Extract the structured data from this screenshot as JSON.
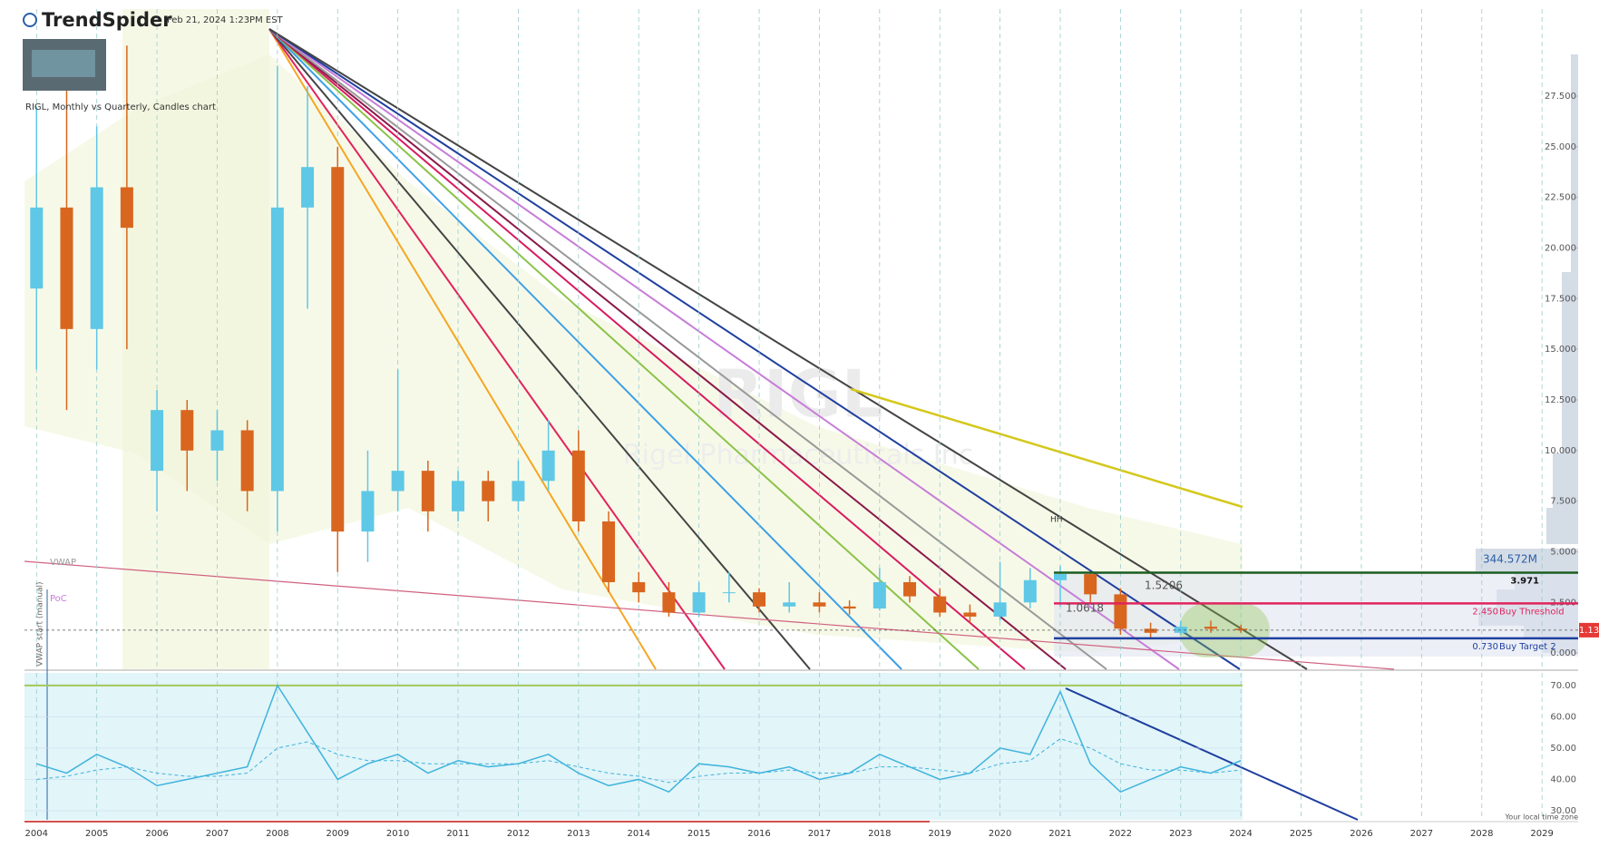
{
  "header": {
    "brand": "TrendSpider",
    "timestamp": "Feb 21, 2024 1:23PM EST",
    "chart_title": "RIGL, Monthly vs Quarterly, Candles chart"
  },
  "chart_data": [
    {
      "type": "candlestick",
      "watermark": "RIGL",
      "watermark_subtitle": "Rigel Pharmaceuticals Inc",
      "x": [
        2004.0,
        2004.5,
        2005.0,
        2005.5,
        2006.0,
        2006.5,
        2007.0,
        2007.5,
        2008.0,
        2008.5,
        2009.0,
        2009.5,
        2010.0,
        2010.5,
        2011.0,
        2011.5,
        2012.0,
        2012.5,
        2013.0,
        2013.5,
        2014.0,
        2014.5,
        2015.0,
        2015.5,
        2016.0,
        2016.5,
        2017.0,
        2017.5,
        2018.0,
        2018.5,
        2019.0,
        2019.5,
        2020.0,
        2020.5,
        2021.0,
        2021.5,
        2022.0,
        2022.5,
        2023.0,
        2023.5,
        2024.0
      ],
      "open": [
        18,
        22,
        16,
        23,
        9,
        12,
        10,
        11,
        8,
        22,
        24,
        6,
        8,
        9,
        7,
        8.5,
        7.5,
        8.5,
        10,
        6.5,
        3.5,
        3.0,
        2.0,
        3.0,
        3.0,
        2.3,
        2.5,
        2.3,
        2.2,
        3.5,
        2.8,
        2.0,
        1.8,
        2.5,
        3.6,
        3.9,
        2.9,
        1.2,
        1.0,
        1.3,
        1.2
      ],
      "high": [
        27,
        28,
        26,
        30,
        13,
        12.5,
        12,
        11.5,
        29,
        28,
        25,
        10,
        14,
        9.5,
        9,
        9,
        9.5,
        11.5,
        11,
        7,
        4,
        3.5,
        3.5,
        4.0,
        3.2,
        3.5,
        3.0,
        2.6,
        4.2,
        3.8,
        3.2,
        2.4,
        4.5,
        4.2,
        4.3,
        4.0,
        3.2,
        1.5,
        1.6,
        1.6,
        1.4
      ],
      "low": [
        14,
        12,
        14,
        15,
        7,
        8,
        8.5,
        7,
        6,
        17,
        4,
        4.5,
        7,
        6,
        6.5,
        6.5,
        7,
        8,
        6,
        3,
        2.5,
        1.8,
        1.8,
        2.5,
        2.0,
        2.0,
        2.0,
        1.9,
        2.1,
        2.5,
        1.8,
        1.5,
        1.6,
        2.2,
        2.3,
        2.5,
        0.9,
        0.7,
        0.9,
        1.0,
        1.0
      ],
      "close": [
        22,
        16,
        23,
        21,
        12,
        10,
        11,
        8,
        22,
        24,
        6,
        8,
        9,
        7,
        8.5,
        7.5,
        8.5,
        10,
        6.5,
        3.5,
        3.0,
        2.0,
        3.0,
        3.0,
        2.3,
        2.5,
        2.3,
        2.2,
        3.5,
        2.8,
        2.0,
        1.8,
        2.5,
        3.6,
        3.9,
        2.9,
        1.2,
        1.0,
        1.3,
        1.2,
        1.13
      ],
      "up_color": "#5ec8e6",
      "down_color": "#d9661f",
      "xlim": [
        2003.8,
        2029.6
      ],
      "xticks": [
        2004,
        2005,
        2006,
        2007,
        2008,
        2009,
        2010,
        2011,
        2012,
        2013,
        2014,
        2015,
        2016,
        2017,
        2018,
        2019,
        2020,
        2021,
        2022,
        2023,
        2024,
        2025,
        2026,
        2027,
        2028,
        2029
      ],
      "ylim": [
        -0.8,
        31.8
      ],
      "yticks": [
        {
          "value": 0,
          "label": "0.000"
        },
        {
          "value": 2.5,
          "label": "2.500"
        },
        {
          "value": 5,
          "label": "5.000"
        },
        {
          "value": 7.5,
          "label": "7.500"
        },
        {
          "value": 10,
          "label": "10.000"
        },
        {
          "value": 12.5,
          "label": "12.500"
        },
        {
          "value": 15,
          "label": "15.000"
        },
        {
          "value": 17.5,
          "label": "17.500"
        },
        {
          "value": 20,
          "label": "20.000"
        },
        {
          "value": 22.5,
          "label": "22.500"
        },
        {
          "value": 25,
          "label": "25.000"
        },
        {
          "value": 27.5,
          "label": "27.500"
        }
      ],
      "grid": true,
      "levels": [
        {
          "value": 3.971,
          "label": "3.971",
          "color": "#1b5e20"
        },
        {
          "value": 2.45,
          "label": "2.450",
          "text": "Buy Threshold",
          "color": "#e0245e"
        },
        {
          "value": 0.73,
          "label": "0.730",
          "text": "Buy Target 2",
          "color": "#1f3f9f"
        }
      ],
      "last_price": 1.13,
      "last_price_color": "#e53935",
      "annotations": [
        "VWAP",
        "PoC",
        "VWAP start (manual)",
        "344.572M",
        "1.5206",
        "1.0618",
        "HH"
      ],
      "time_zone_note": "Your local time zone"
    },
    {
      "type": "line",
      "x": [
        2004.0,
        2004.5,
        2005.0,
        2005.5,
        2006.0,
        2006.5,
        2007.0,
        2007.5,
        2008.0,
        2008.5,
        2009.0,
        2009.5,
        2010.0,
        2010.5,
        2011.0,
        2011.5,
        2012.0,
        2012.5,
        2013.0,
        2013.5,
        2014.0,
        2014.5,
        2015.0,
        2015.5,
        2016.0,
        2016.5,
        2017.0,
        2017.5,
        2018.0,
        2018.5,
        2019.0,
        2019.5,
        2020.0,
        2020.5,
        2021.0,
        2021.5,
        2022.0,
        2022.5,
        2023.0,
        2023.5,
        2024.0
      ],
      "series": [
        {
          "color": "#3fb3dc",
          "values": [
            45,
            42,
            48,
            44,
            38,
            40,
            42,
            44,
            70,
            55,
            40,
            45,
            48,
            42,
            46,
            44,
            45,
            48,
            42,
            38,
            40,
            36,
            45,
            44,
            42,
            44,
            40,
            42,
            48,
            44,
            40,
            42,
            50,
            48,
            68,
            45,
            36,
            40,
            44,
            42,
            46
          ]
        },
        {
          "color": "#3fb3dc",
          "dashed": true,
          "values": [
            40,
            41,
            43,
            44,
            42,
            41,
            41,
            42,
            50,
            52,
            48,
            46,
            46,
            45,
            45,
            45,
            45,
            46,
            44,
            42,
            41,
            39,
            41,
            42,
            42,
            43,
            42,
            42,
            44,
            44,
            43,
            42,
            45,
            46,
            53,
            50,
            45,
            43,
            43,
            42,
            43
          ]
        }
      ],
      "xlim": [
        2003.8,
        2029.6
      ],
      "ylim": [
        27.1,
        74.6
      ],
      "yticks": [
        {
          "value": 30,
          "label": "30.00"
        },
        {
          "value": 40,
          "label": "40.00"
        },
        {
          "value": 50,
          "label": "50.00"
        },
        {
          "value": 60,
          "label": "60.00"
        },
        {
          "value": 70,
          "label": "70.00"
        }
      ]
    }
  ]
}
